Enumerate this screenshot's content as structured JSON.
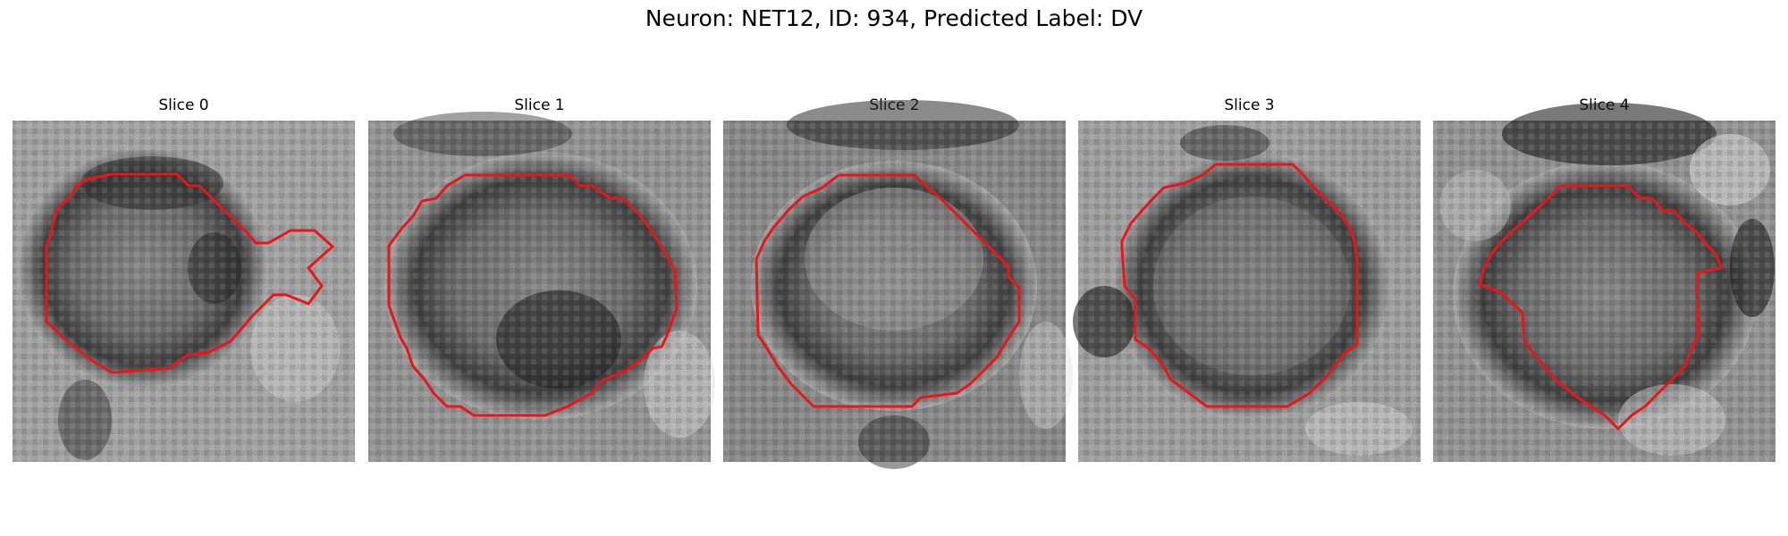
{
  "figure": {
    "suptitle": "Neuron: NET12, ID: 934, Predicted Label: DV",
    "panels": [
      {
        "title": "Slice 0"
      },
      {
        "title": "Slice 1"
      },
      {
        "title": "Slice 2"
      },
      {
        "title": "Slice 3"
      },
      {
        "title": "Slice 4"
      }
    ],
    "contour_color": "#e8161a",
    "colormap": "grayscale"
  }
}
